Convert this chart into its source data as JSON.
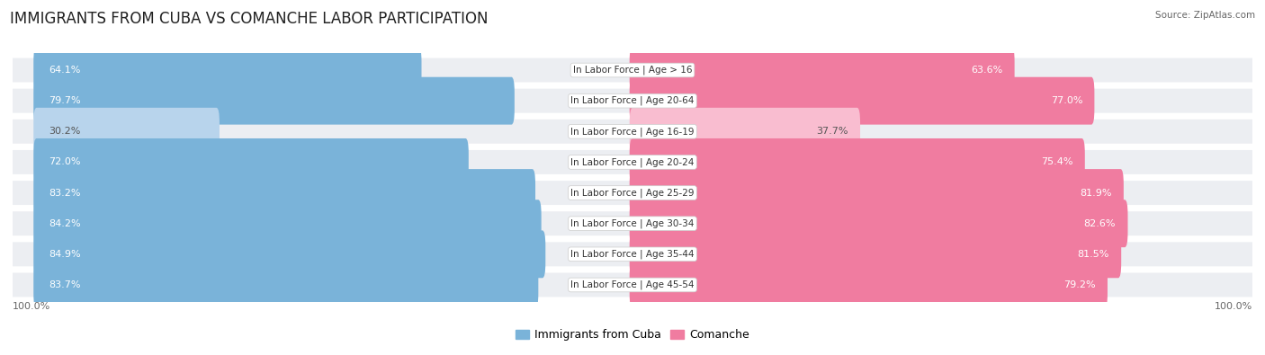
{
  "title": "IMMIGRANTS FROM CUBA VS COMANCHE LABOR PARTICIPATION",
  "source": "Source: ZipAtlas.com",
  "categories": [
    "In Labor Force | Age > 16",
    "In Labor Force | Age 20-64",
    "In Labor Force | Age 16-19",
    "In Labor Force | Age 20-24",
    "In Labor Force | Age 25-29",
    "In Labor Force | Age 30-34",
    "In Labor Force | Age 35-44",
    "In Labor Force | Age 45-54"
  ],
  "cuba_values": [
    64.1,
    79.7,
    30.2,
    72.0,
    83.2,
    84.2,
    84.9,
    83.7
  ],
  "comanche_values": [
    63.6,
    77.0,
    37.7,
    75.4,
    81.9,
    82.6,
    81.5,
    79.2
  ],
  "cuba_color": "#7ab3d9",
  "cuba_color_light": "#b8d4ec",
  "comanche_color": "#f07ca0",
  "comanche_color_light": "#f9bdd0",
  "row_bg_color": "#eceef2",
  "label_color_white": "#ffffff",
  "label_color_dark": "#555555",
  "title_fontsize": 12,
  "label_fontsize": 8,
  "axis_fontsize": 8,
  "legend_fontsize": 9,
  "background_color": "#ffffff"
}
